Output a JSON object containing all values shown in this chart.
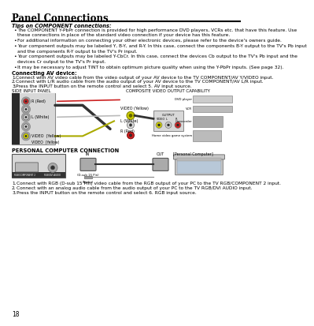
{
  "title": "Panel Connections",
  "page_num": "18",
  "section1_header": "Tips on COMPONENT connections:",
  "bullet_points": [
    "The COMPONENT Y-PbPr connection is provided for high performance DVD players, VCRs etc. that have this feature. Use\nthese connections in place of the standard video connection if your device has this feature.",
    "For additional information on connecting your other electronic devices, please refer to the device's owners guide.",
    "Your component outputs may be labeled Y, B-Y, and R-Y. In this case, connect the components B-Y output to the TV's Pb input\nand the components R-Y output to the TV's Pr input.",
    "Your component outputs may be labeled Y-CbCr. In this case, connect the devices Cb output to the TV's Pb input and the\ndevices Cr output to the TV's Pr input.",
    "It may be necessary to adjust TINT to obtain optimum picture quality when using the Y-PbPr inputs. (See page 32)."
  ],
  "section2_header": "Connecting AV device:",
  "av_steps": [
    "Connect with AV video cable from the video output of your AV device to the TV COMPONENT/AV Y/VIDEO input.",
    "Connect with L/R audio cable from the audio output of your AV device to the TV COMPONENT/AV L/R input.",
    "Press the INPUT button on the remote control and select 5. AV input source."
  ],
  "diagram1_left_label": "SIDE INPUT PANEL",
  "diagram1_right_label": "COMPOSITE VIDEO OUTPUT CAPABILITY",
  "section3_header": "PERSONAL COMPUTER CONNECTION",
  "pc_steps": [
    "Connect with RGB (D-sub 15 Pin) video cable from the RGB output of your PC to the TV RGB/COMPONENT 2 input.",
    "Connect with an analog audio cable from the audio output of your PC to the TV RGB/DVI AUDIO input.",
    "Press the INPUT button on the remote control and select 6. RGB input source."
  ],
  "right_device_labels": [
    "DVD player",
    "VCR",
    "Camcorder",
    "Home video game system"
  ],
  "bg_color": "#ffffff"
}
